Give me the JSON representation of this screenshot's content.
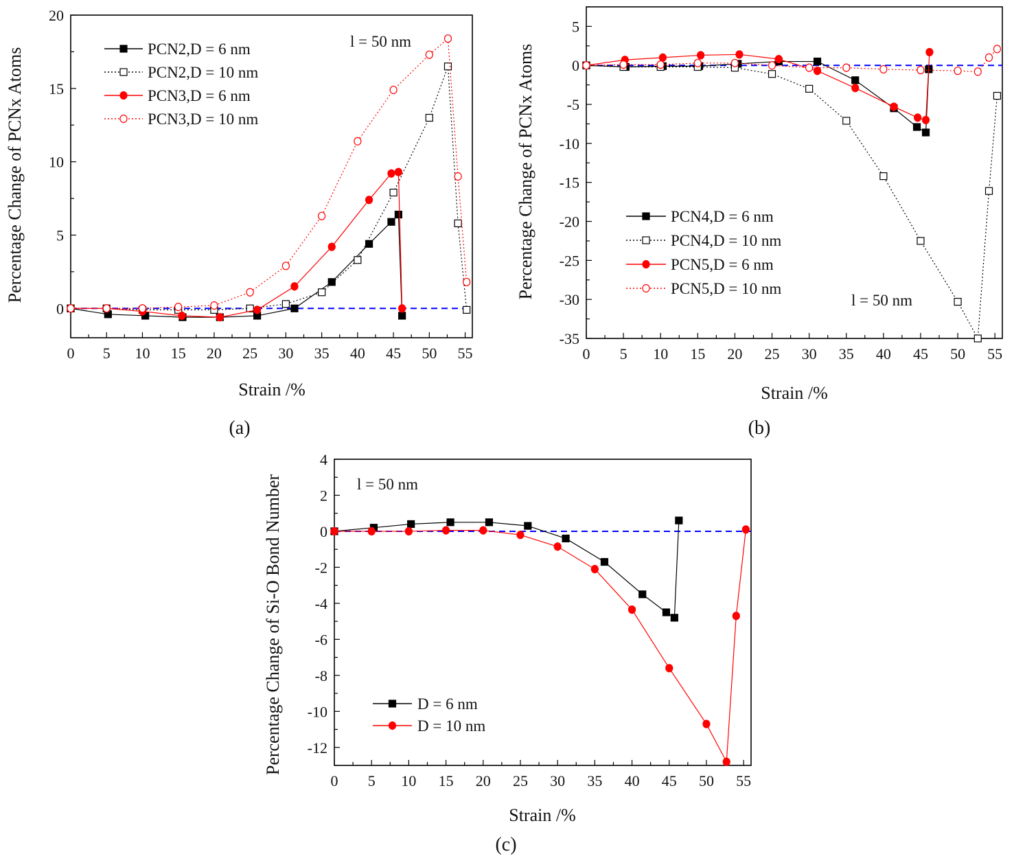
{
  "chart_data": [
    {
      "type": "line",
      "panel_label": "(a)",
      "xlabel": "Strain  /%",
      "ylabel": "Percentage Change of PCNx Atoms",
      "annotation": "l = 50 nm",
      "xlim": [
        0,
        56
      ],
      "ylim": [
        -2,
        20
      ],
      "xticks": [
        0,
        5,
        10,
        15,
        20,
        25,
        30,
        35,
        40,
        45,
        50,
        55
      ],
      "yticks": [
        0,
        5,
        10,
        15,
        20
      ],
      "reference_line": {
        "y": 0,
        "color": "#0000ff",
        "style": "dashed"
      },
      "legend_placement": "top-left",
      "series": [
        {
          "name": "PCN2,D = 6 nm",
          "color": "#000000",
          "marker": "filled-square",
          "line": "solid",
          "x": [
            0,
            5.2,
            10.4,
            15.6,
            20.8,
            26,
            31.2,
            36.4,
            41.6,
            44.7,
            45.7,
            46.2
          ],
          "y": [
            0,
            -0.4,
            -0.5,
            -0.6,
            -0.6,
            -0.5,
            0,
            1.8,
            4.4,
            5.9,
            6.4,
            -0.5
          ]
        },
        {
          "name": "PCN2,D = 10 nm",
          "color": "#000000",
          "marker": "open-square",
          "line": "dotted",
          "x": [
            0,
            5,
            10,
            15,
            20,
            25,
            30,
            35,
            40,
            45,
            50,
            52.6,
            54,
            55.2
          ],
          "y": [
            0,
            0,
            -0.1,
            -0.1,
            -0.1,
            0,
            0.3,
            1.1,
            3.3,
            7.9,
            13.0,
            16.5,
            5.8,
            -0.1
          ]
        },
        {
          "name": "PCN3,D = 6 nm",
          "color": "#ff0000",
          "marker": "filled-circle",
          "line": "solid",
          "x": [
            0,
            5,
            10,
            15.5,
            20.8,
            26,
            31.2,
            36.4,
            41.6,
            44.7,
            45.7,
            46.2
          ],
          "y": [
            0,
            0,
            -0.2,
            -0.5,
            -0.6,
            -0.1,
            1.5,
            4.2,
            7.4,
            9.2,
            9.3,
            0
          ]
        },
        {
          "name": "PCN3,D = 10 nm",
          "color": "#ff0000",
          "marker": "open-circle",
          "line": "dotted",
          "x": [
            0,
            5,
            10,
            15,
            20,
            25,
            30,
            35,
            40,
            45,
            50,
            52.6,
            54,
            55.2
          ],
          "y": [
            0,
            0,
            0,
            0.1,
            0.2,
            1.1,
            2.9,
            6.3,
            11.4,
            14.9,
            17.3,
            18.4,
            9.0,
            1.8
          ]
        }
      ]
    },
    {
      "type": "line",
      "panel_label": "(b)",
      "xlabel": "Strain  /%",
      "ylabel": "Percentage Change of PCNx Atoms",
      "annotation": "l = 50 nm",
      "xlim": [
        0,
        56
      ],
      "ylim": [
        -35,
        7.5
      ],
      "xticks": [
        0,
        5,
        10,
        15,
        20,
        25,
        30,
        35,
        40,
        45,
        50,
        55
      ],
      "yticks": [
        5,
        0,
        -5,
        -10,
        -15,
        -20,
        -25,
        -30,
        -35
      ],
      "reference_line": {
        "y": 0,
        "color": "#0000ff",
        "style": "dashed"
      },
      "legend_placement": "bottom-left",
      "series": [
        {
          "name": "PCN4,D = 6 nm",
          "color": "#000000",
          "marker": "filled-square",
          "line": "solid",
          "x": [
            0,
            5.3,
            10.3,
            15.2,
            20.4,
            25.9,
            31.1,
            36.2,
            41.4,
            44.5,
            45.7,
            46.1
          ],
          "y": [
            0,
            -0.2,
            -0.1,
            -0.1,
            0.2,
            0.5,
            0.5,
            -1.9,
            -5.5,
            -7.9,
            -8.6,
            -0.5
          ]
        },
        {
          "name": "PCN4,D = 10 nm",
          "color": "#000000",
          "marker": "open-square",
          "line": "dotted",
          "x": [
            0,
            5,
            10,
            15,
            20,
            25,
            30,
            35,
            40,
            45,
            50,
            52.7,
            54.2,
            55.3
          ],
          "y": [
            0,
            -0.2,
            -0.2,
            -0.2,
            -0.3,
            -1.1,
            -3.0,
            -7.1,
            -14.2,
            -22.5,
            -30.3,
            -35,
            -16.1,
            -3.9
          ]
        },
        {
          "name": "PCN5,D = 6 nm",
          "color": "#ff0000",
          "marker": "filled-circle",
          "line": "solid",
          "x": [
            0,
            5.2,
            10.3,
            15.4,
            20.6,
            25.9,
            31.1,
            36.2,
            41.4,
            44.6,
            45.7,
            46.2
          ],
          "y": [
            0,
            0.7,
            1.0,
            1.3,
            1.4,
            0.8,
            -0.7,
            -2.9,
            -5.3,
            -6.7,
            -7.0,
            1.7
          ]
        },
        {
          "name": "PCN5,D = 10 nm",
          "color": "#ff0000",
          "marker": "open-circle",
          "line": "dotted",
          "x": [
            0,
            5,
            10,
            15,
            20,
            25,
            30,
            35,
            40,
            45,
            50,
            52.7,
            54.2,
            55.3
          ],
          "y": [
            0,
            0.1,
            0.1,
            0.3,
            0.3,
            0,
            -0.3,
            -0.3,
            -0.5,
            -0.6,
            -0.7,
            -0.8,
            1.0,
            2.1
          ]
        }
      ]
    },
    {
      "type": "line",
      "panel_label": "(c)",
      "xlabel": "Strain  /%",
      "ylabel": "Percentage Change of Si-O Bond Number",
      "annotation": "l = 50 nm",
      "xlim": [
        0,
        56
      ],
      "ylim": [
        -13,
        4
      ],
      "xticks": [
        0,
        5,
        10,
        15,
        20,
        25,
        30,
        35,
        40,
        45,
        50,
        55
      ],
      "yticks": [
        4,
        2,
        0,
        -2,
        -4,
        -6,
        -8,
        -10,
        -12
      ],
      "reference_line": {
        "y": 0,
        "color": "#0000ff",
        "style": "dashed"
      },
      "legend_placement": "bottom-left",
      "series": [
        {
          "name": "D = 6 nm",
          "color": "#000000",
          "marker": "filled-square",
          "line": "solid",
          "x": [
            0,
            5.3,
            10.3,
            15.6,
            20.8,
            26,
            31.1,
            36.3,
            41.4,
            44.6,
            45.7,
            46.3
          ],
          "y": [
            0,
            0.2,
            0.4,
            0.5,
            0.5,
            0.3,
            -0.4,
            -1.7,
            -3.5,
            -4.5,
            -4.8,
            0.6
          ]
        },
        {
          "name": "D = 10 nm",
          "color": "#ff0000",
          "marker": "filled-circle",
          "line": "solid",
          "x": [
            0,
            5,
            10,
            15,
            20,
            25,
            30,
            35,
            40,
            45,
            50,
            52.7,
            54,
            55.3
          ],
          "y": [
            0,
            0,
            0,
            0.05,
            0.05,
            -0.2,
            -0.85,
            -2.1,
            -4.35,
            -7.6,
            -10.7,
            -12.8,
            -4.7,
            0.1
          ]
        }
      ]
    }
  ]
}
